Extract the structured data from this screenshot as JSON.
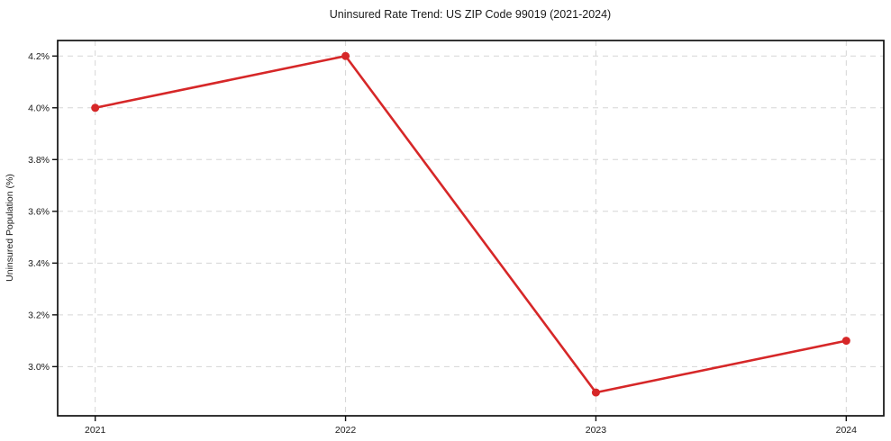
{
  "chart_data": {
    "type": "line",
    "title": "Uninsured Rate Trend: US ZIP Code 99019 (2021-2024)",
    "xlabel": "",
    "ylabel": "Uninsured Population (%)",
    "x": [
      2021,
      2022,
      2023,
      2024
    ],
    "x_tick_labels": [
      "2021",
      "2022",
      "2023",
      "2024"
    ],
    "values": [
      4.0,
      4.2,
      2.9,
      3.1
    ],
    "y_ticks": [
      3.0,
      3.2,
      3.4,
      3.6,
      3.8,
      4.0,
      4.2
    ],
    "y_tick_labels": [
      "3.0%",
      "3.2%",
      "3.4%",
      "3.6%",
      "3.8%",
      "4.0%",
      "4.2%"
    ],
    "xlim": [
      2020.85,
      2024.15
    ],
    "ylim": [
      2.81,
      4.26
    ],
    "grid": true,
    "grid_style": "dashed",
    "legend": false,
    "marker": "circle",
    "colors": {
      "line": "#d62728",
      "grid": "#d5d5d5",
      "axis": "#111111",
      "text": "#1a1a1a",
      "background": "#ffffff"
    }
  }
}
